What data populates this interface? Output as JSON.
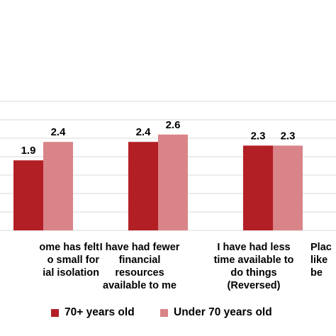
{
  "chart_data": {
    "type": "bar",
    "ylim": [
      0,
      3.5
    ],
    "grid": true,
    "legend_position": "bottom",
    "categories": [
      "ome has felt\no small for\nial isolation",
      "I have had fewer\nfinancial\nresources\navailable to me",
      "I have had less\ntime available to\ndo things\n(Reversed)",
      "Plac\nlike\nbe"
    ],
    "series": [
      {
        "name": "70+ years old",
        "color": "#b22025",
        "values": [
          1.9,
          2.4,
          2.3,
          null
        ]
      },
      {
        "name": "Under 70 years old",
        "color": "#d98488",
        "values": [
          2.4,
          2.6,
          2.3,
          null
        ]
      }
    ]
  }
}
